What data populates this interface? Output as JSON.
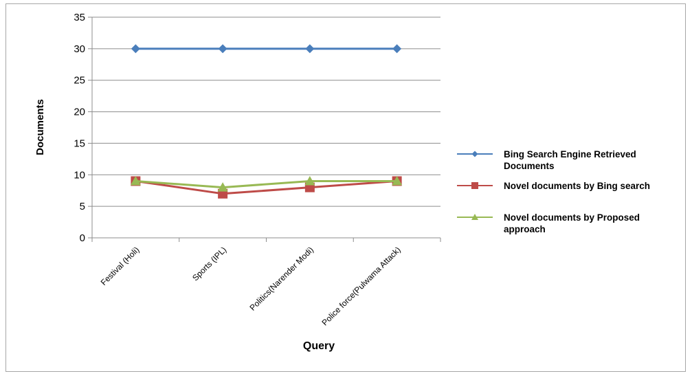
{
  "chart_data": {
    "type": "line",
    "title": "",
    "xlabel": "Query",
    "ylabel": "Documents",
    "categories": [
      "Festival (Holi)",
      "Sports (IPL)",
      "Politics(Narender Modi)",
      "Police force(Pulwama Attack)"
    ],
    "ylim": [
      0,
      35
    ],
    "yticks": [
      0,
      5,
      10,
      15,
      20,
      25,
      30,
      35
    ],
    "grid": true,
    "legend_position": "right",
    "series": [
      {
        "name": "Bing Search Engine Retrieved Documents",
        "legend_lines": [
          "Bing Search Engine Retrieved",
          "Documents"
        ],
        "values": [
          30,
          30,
          30,
          30
        ],
        "color": "#4a7ebb",
        "marker": "diamond"
      },
      {
        "name": "Novel documents by Bing search",
        "legend_lines": [
          "Novel documents by Bing search"
        ],
        "values": [
          9,
          7,
          8,
          9
        ],
        "color": "#be4b48",
        "marker": "square"
      },
      {
        "name": "Novel documents by Proposed approach",
        "legend_lines": [
          "Novel documents by Proposed",
          "approach"
        ],
        "values": [
          9,
          8,
          9,
          9
        ],
        "color": "#98b954",
        "marker": "triangle"
      }
    ]
  }
}
